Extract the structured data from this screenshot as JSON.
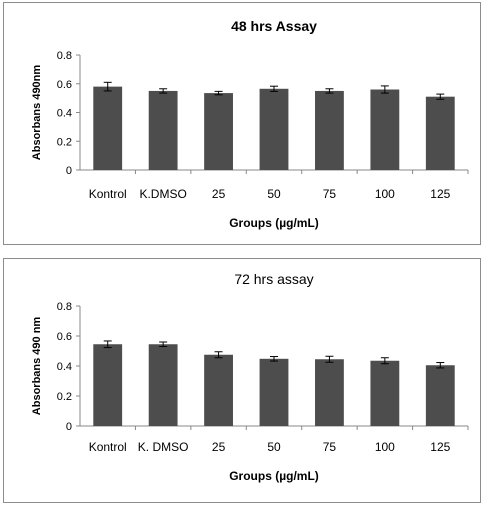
{
  "chart_data": [
    {
      "type": "bar",
      "title": "48 hrs Assay",
      "xlabel": "Groups (µg/mL)",
      "ylabel": "Absorbans 490nm",
      "categories": [
        "Kontrol",
        "K.DMSO",
        "25",
        "50",
        "75",
        "100",
        "125"
      ],
      "values": [
        0.58,
        0.55,
        0.535,
        0.565,
        0.55,
        0.56,
        0.51
      ],
      "errors": [
        0.03,
        0.015,
        0.012,
        0.018,
        0.015,
        0.025,
        0.018
      ],
      "ylim": [
        0,
        0.8
      ],
      "yticks": [
        "0",
        "0.2",
        "0.4",
        "0.6",
        "0.8"
      ],
      "grid": false,
      "bar_color": "#4d4d4d"
    },
    {
      "type": "bar",
      "title": "72 hrs assay",
      "xlabel": "Groups (µg/mL)",
      "ylabel": "Absorbans 490 nm",
      "categories": [
        "Kontrol",
        "K. DMSO",
        "25",
        "50",
        "75",
        "100",
        "125"
      ],
      "values": [
        0.545,
        0.545,
        0.475,
        0.448,
        0.445,
        0.435,
        0.405
      ],
      "errors": [
        0.022,
        0.015,
        0.02,
        0.015,
        0.02,
        0.02,
        0.018
      ],
      "ylim": [
        0,
        0.8
      ],
      "yticks": [
        "0",
        "0.2",
        "0.4",
        "0.6",
        "0.8"
      ],
      "grid": false,
      "bar_color": "#4d4d4d"
    }
  ]
}
